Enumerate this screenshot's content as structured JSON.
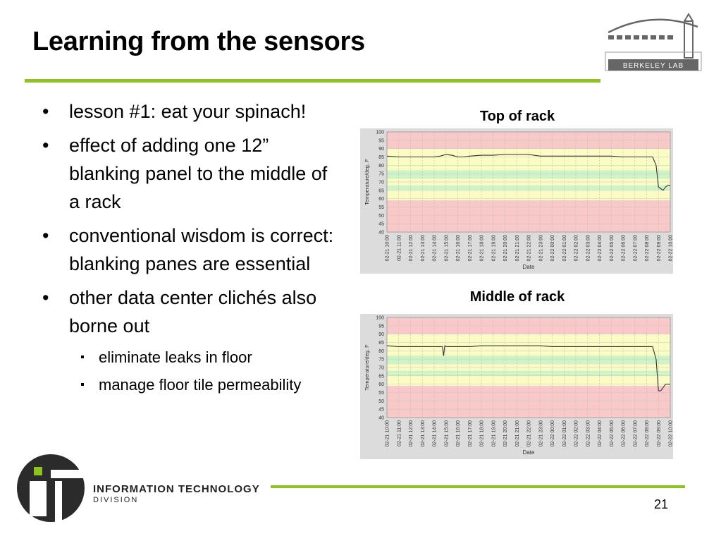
{
  "slide": {
    "title": "Learning from the sensors",
    "page_number": "21"
  },
  "bullets": [
    {
      "level": 1,
      "text": "lesson #1: eat your spinach!"
    },
    {
      "level": 1,
      "text": "effect of adding one 12” blanking panel to the middle of a rack"
    },
    {
      "level": 1,
      "text": "conventional wisdom is correct: blanking panes are essential"
    },
    {
      "level": 1,
      "text": "other data center clichés also borne out"
    },
    {
      "level": 2,
      "text": "eliminate leaks in floor"
    },
    {
      "level": 2,
      "text": "manage floor tile permeability"
    }
  ],
  "logos": {
    "berkeley_lab": "BERKELEY LAB",
    "it_line1": "INFORMATION TECHNOLOGY",
    "it_line2": "DIVISION"
  },
  "colors": {
    "accent_green": "#8dc21f",
    "band_red": "#f9c8c8",
    "band_yellow": "#fbfbc4",
    "band_green": "#cdf3c6",
    "line": "#333333"
  },
  "chart_data": [
    {
      "type": "line",
      "title": "Top of rack",
      "xlabel": "Date",
      "ylabel": "Temperature/deg. F",
      "ylim": [
        40,
        100
      ],
      "yticks": [
        40,
        45,
        50,
        55,
        60,
        65,
        70,
        75,
        80,
        85,
        90,
        95,
        100
      ],
      "x_ticks": [
        "02-21 10:00",
        "02-21 11:00",
        "02-21 12:00",
        "02-21 13:00",
        "02-21 14:00",
        "02-21 15:00",
        "02-21 16:00",
        "02-21 17:00",
        "02-21 18:00",
        "02-21 19:00",
        "02-21 20:00",
        "02-21 21:00",
        "02-21 22:00",
        "02-21 23:00",
        "02-22 00:00",
        "02-22 01:00",
        "02-22 02:00",
        "02-22 03:00",
        "02-22 04:00",
        "02-22 05:00",
        "02-22 06:00",
        "02-22 07:00",
        "02-22 08:00",
        "02-22 09:00",
        "02-22 10:00"
      ],
      "bands": [
        {
          "from": 40,
          "to": 59,
          "color": "red"
        },
        {
          "from": 59,
          "to": 65,
          "color": "yellow"
        },
        {
          "from": 65,
          "to": 68,
          "color": "green"
        },
        {
          "from": 68,
          "to": 72,
          "color": "yellow"
        },
        {
          "from": 72,
          "to": 77,
          "color": "green"
        },
        {
          "from": 77,
          "to": 80,
          "color": "yellow"
        },
        {
          "from": 80,
          "to": 90,
          "color": "yellow"
        },
        {
          "from": 90,
          "to": 100,
          "color": "red"
        }
      ],
      "grid": true,
      "series": [
        {
          "x": [
            0,
            1,
            2,
            3,
            4,
            4.5,
            5,
            5.5,
            6,
            6.5,
            7,
            8,
            9,
            10,
            11,
            12,
            13,
            14,
            15,
            16,
            17,
            18,
            19,
            20,
            21,
            22,
            22.5,
            22.8,
            23,
            23.2,
            23.4,
            23.6,
            23.8,
            24
          ],
          "y": [
            85.5,
            85,
            85,
            85,
            85,
            85.5,
            86.5,
            86,
            85,
            85,
            85.5,
            86,
            86,
            86.5,
            86.5,
            86.5,
            85.5,
            85.5,
            85.5,
            85.5,
            85.5,
            85.5,
            85.5,
            85,
            85,
            85,
            85,
            80,
            67,
            66,
            65,
            67,
            68,
            68
          ]
        }
      ]
    },
    {
      "type": "line",
      "title": "Middle of rack",
      "xlabel": "Date",
      "ylabel": "Temperature/deg. F",
      "ylim": [
        40,
        100
      ],
      "yticks": [
        40,
        45,
        50,
        55,
        60,
        65,
        70,
        75,
        80,
        85,
        90,
        95,
        100
      ],
      "x_ticks": [
        "02-21 10:00",
        "02-21 11:00",
        "02-21 12:00",
        "02-21 13:00",
        "02-21 14:00",
        "02-21 15:00",
        "02-21 16:00",
        "02-21 17:00",
        "02-21 18:00",
        "02-21 19:00",
        "02-21 20:00",
        "02-21 21:00",
        "02-21 22:00",
        "02-21 23:00",
        "02-22 00:00",
        "02-22 01:00",
        "02-22 02:00",
        "02-22 03:00",
        "02-22 04:00",
        "02-22 05:00",
        "02-22 06:00",
        "02-22 07:00",
        "02-22 08:00",
        "02-22 09:00",
        "02-22 10:00"
      ],
      "bands": [
        {
          "from": 40,
          "to": 59,
          "color": "red"
        },
        {
          "from": 59,
          "to": 65,
          "color": "yellow"
        },
        {
          "from": 65,
          "to": 68,
          "color": "green"
        },
        {
          "from": 68,
          "to": 72,
          "color": "yellow"
        },
        {
          "from": 72,
          "to": 77,
          "color": "green"
        },
        {
          "from": 77,
          "to": 80,
          "color": "yellow"
        },
        {
          "from": 80,
          "to": 90,
          "color": "yellow"
        },
        {
          "from": 90,
          "to": 100,
          "color": "red"
        }
      ],
      "grid": true,
      "series": [
        {
          "x": [
            0,
            1,
            2,
            3,
            4,
            4.7,
            4.8,
            4.9,
            5,
            6,
            7,
            8,
            9,
            10,
            11,
            12,
            13,
            14,
            15,
            16,
            17,
            18,
            19,
            20,
            21,
            22,
            22.5,
            22.8,
            23,
            23.2,
            23.4,
            23.6,
            23.8,
            24
          ],
          "y": [
            83,
            82.5,
            82.5,
            82.5,
            82.5,
            82.5,
            77,
            83,
            82.5,
            82.5,
            82.5,
            83,
            83,
            83,
            83,
            83,
            83,
            82.5,
            82.5,
            82.5,
            82.5,
            82.5,
            82.5,
            82.5,
            82.5,
            82.5,
            82.5,
            75,
            56,
            56,
            58,
            60,
            60,
            60
          ]
        }
      ]
    }
  ]
}
